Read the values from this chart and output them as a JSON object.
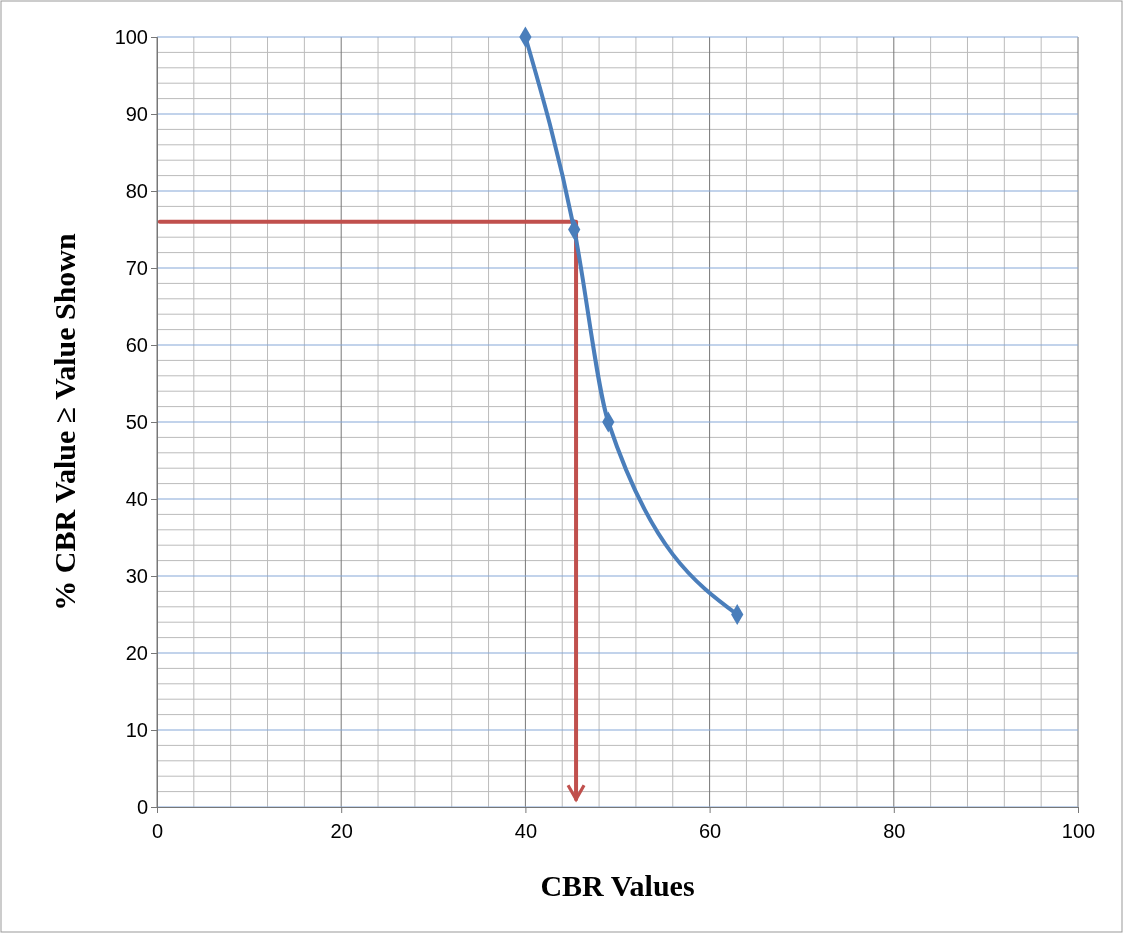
{
  "chart_data": {
    "type": "line",
    "xlabel": "CBR Values",
    "ylabel": "% CBR Value ≥ Value Shown",
    "xlim": [
      0,
      100
    ],
    "xticks": [
      0,
      20,
      40,
      60,
      80,
      100
    ],
    "ylim": [
      0,
      100
    ],
    "yticks": [
      0,
      10,
      20,
      30,
      40,
      50,
      60,
      70,
      80,
      90,
      100
    ],
    "grid": true,
    "series": [
      {
        "color": "#4a7ebb",
        "marker": "diamond",
        "x": [
          40,
          45.3,
          49,
          63
        ],
        "values": [
          100,
          75,
          50,
          25
        ]
      },
      {
        "color": "#c0504d",
        "marker": "none",
        "x": [
          0.3,
          45.5,
          45.5
        ],
        "values": [
          76,
          76,
          1
        ]
      }
    ]
  }
}
